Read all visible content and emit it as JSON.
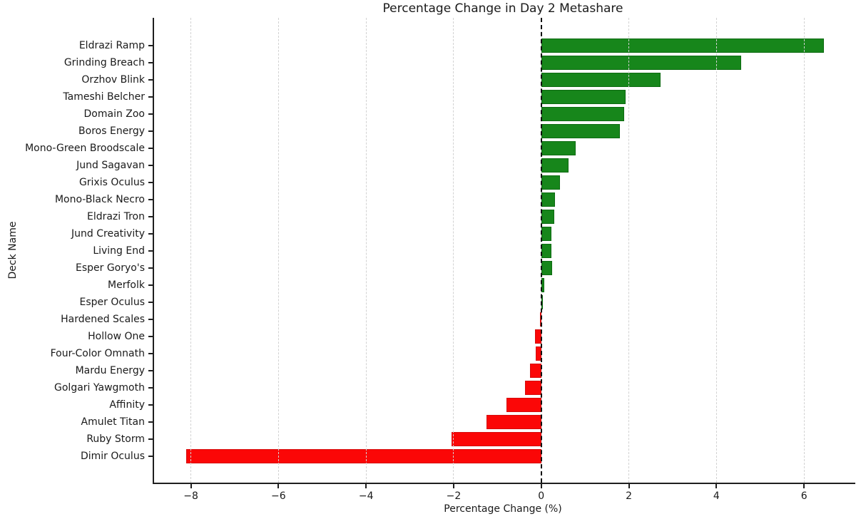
{
  "chart_data": {
    "type": "bar",
    "orientation": "horizontal",
    "title": "Percentage Change in Day 2 Metashare",
    "xlabel": "Percentage Change (%)",
    "ylabel": "Deck Name",
    "categories": [
      "Eldrazi Ramp",
      "Grinding Breach",
      "Orzhov Blink",
      "Tameshi Belcher",
      "Domain Zoo",
      "Boros Energy",
      "Mono-Green Broodscale",
      "Jund Sagavan",
      "Grixis Oculus",
      "Mono-Black Necro",
      "Eldrazi Tron",
      "Jund Creativity",
      "Living End",
      "Esper Goryo's",
      "Merfolk",
      "Esper Oculus",
      "Hardened Scales",
      "Hollow One",
      "Four-Color Omnath",
      "Mardu Energy",
      "Golgari Yawgmoth",
      "Affinity",
      "Amulet Titan",
      "Ruby Storm",
      "Dimir Oculus"
    ],
    "values": [
      6.45,
      4.57,
      2.72,
      1.92,
      1.9,
      1.8,
      0.78,
      0.63,
      0.42,
      0.32,
      0.29,
      0.23,
      0.23,
      0.25,
      0.07,
      0.02,
      -0.03,
      -0.14,
      -0.13,
      -0.26,
      -0.37,
      -0.8,
      -1.25,
      -2.05,
      -8.1
    ],
    "x_ticks": [
      -8,
      -6,
      -4,
      -2,
      0,
      2,
      4,
      6
    ],
    "x_tick_labels": [
      "−8",
      "−6",
      "−4",
      "−2",
      "0",
      "2",
      "4",
      "6"
    ],
    "xlim": [
      -8.84,
      7.17
    ],
    "zero_line": true,
    "grid": "vertical-dashed-on-top",
    "legend": "none",
    "colors": {
      "positive_bar": "#17861b",
      "positive_edge": "#0e6b12",
      "negative_bar": "#fb0707",
      "negative_edge": "#d50c0c",
      "zero_line": "#111111",
      "gridline": "#d2d2d2",
      "text": "#1a1a1a"
    }
  }
}
